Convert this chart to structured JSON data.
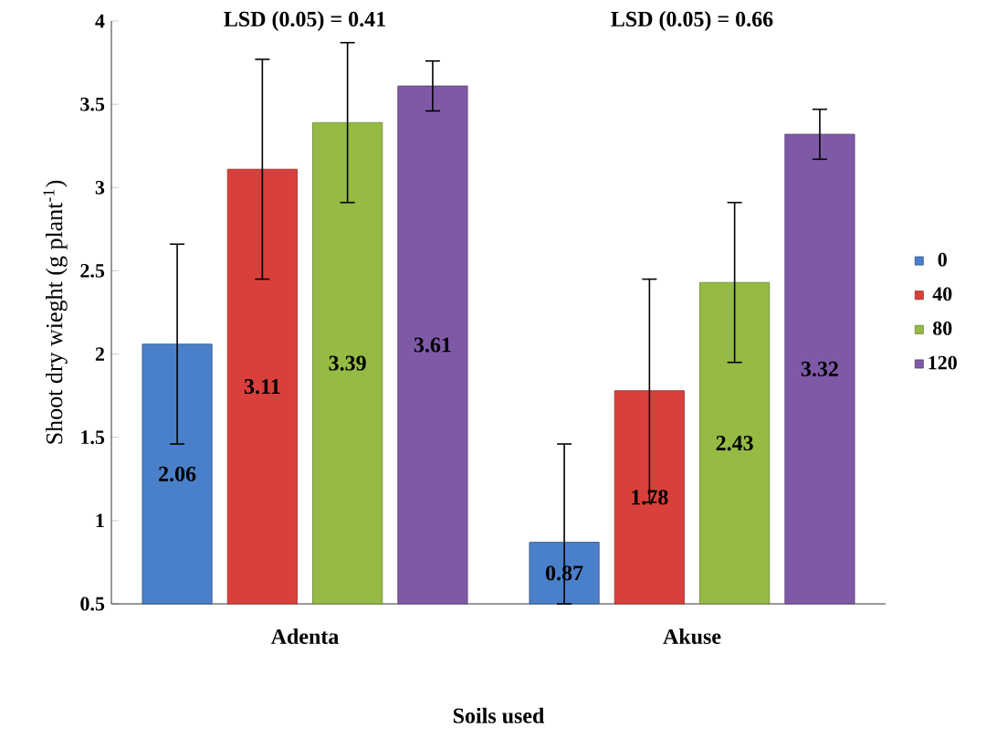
{
  "chart_data": {
    "type": "bar",
    "xlabel": "Soils used",
    "ylabel": "Shoot dry wieght (g plant$^{-1}$)",
    "categories": [
      "Adenta",
      "Akuse"
    ],
    "series": [
      {
        "name": "0",
        "color": "#4a7fc9",
        "values": [
          2.06,
          0.87
        ],
        "errors": [
          0.6,
          [
            0.5,
            1.46
          ]
        ]
      },
      {
        "name": "40",
        "color": "#d9403b",
        "values": [
          3.11,
          1.78
        ],
        "errors": [
          0.66,
          0.67
        ]
      },
      {
        "name": "80",
        "color": "#95bb45",
        "values": [
          3.39,
          2.43
        ],
        "errors": [
          0.48,
          0.48
        ]
      },
      {
        "name": "120",
        "color": "#7e5aa6",
        "values": [
          3.61,
          3.32
        ],
        "errors": [
          0.15,
          0.15
        ]
      }
    ],
    "ylim": [
      0.5,
      4
    ],
    "yticks": [
      0.5,
      1,
      1.5,
      2,
      2.5,
      3,
      3.5,
      4
    ],
    "data_labels": true,
    "legend": "right",
    "grid": false,
    "annotations": [
      "LSD (0.05) = 0.41",
      "LSD (0.05) = 0.66"
    ]
  }
}
